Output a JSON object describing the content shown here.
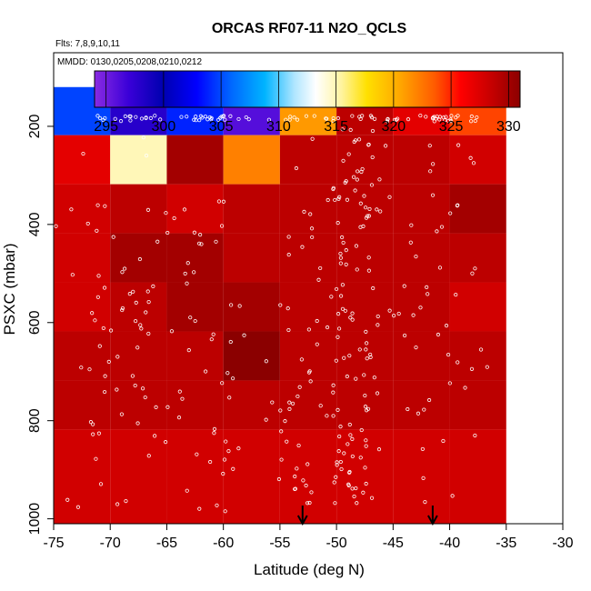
{
  "chart_data": {
    "type": "heatmap",
    "title": "ORCAS RF07-11 N2O_QCLS",
    "flights_note": "Flts: 7,8,9,10,11",
    "dates_note": "MMDD: 0130,0205,0208,0210,0212",
    "xlabel": "Latitude (deg N)",
    "ylabel": "PSXC (mbar)",
    "xlim": [
      -75,
      -30
    ],
    "ylim": [
      1010,
      50
    ],
    "x_ticks": [
      -75,
      -70,
      -65,
      -60,
      -55,
      -50,
      -45,
      -40,
      -35,
      -30
    ],
    "x_tick_labels": [
      "-75",
      "-70",
      "-65",
      "-60",
      "-55",
      "-50",
      "-45",
      "-40",
      "-35",
      "-30"
    ],
    "y_ticks": [
      200,
      400,
      600,
      800,
      1000
    ],
    "y_tick_labels": [
      "200",
      "400",
      "600",
      "800",
      "1000"
    ],
    "colorbar": {
      "min": 294,
      "max": 331,
      "ticks": [
        295,
        300,
        305,
        310,
        315,
        320,
        325,
        330
      ],
      "tick_labels": [
        "295",
        "300",
        "305",
        "310",
        "315",
        "320",
        "325",
        "330"
      ]
    },
    "lat_bins": [
      -75,
      -70,
      -65,
      -60,
      -55,
      -50,
      -45,
      -40,
      -35
    ],
    "pressure_bins": [
      120,
      218,
      318,
      418,
      518,
      618,
      718,
      818,
      1010
    ],
    "cells": [
      [
        305,
        298,
        304,
        296,
        321,
        329,
        327,
        324
      ],
      [
        327,
        315,
        330,
        322,
        329,
        329,
        329,
        328
      ],
      [
        328,
        329,
        328,
        329,
        329,
        329,
        329,
        330
      ],
      [
        328,
        330,
        330,
        329,
        329,
        329,
        329,
        329
      ],
      [
        328,
        329,
        330,
        330,
        329,
        329,
        329,
        328
      ],
      [
        329,
        329,
        329,
        331,
        329,
        329,
        329,
        329
      ],
      [
        329,
        329,
        329,
        329,
        329,
        329,
        329,
        329
      ],
      [
        328,
        328,
        328,
        328,
        328,
        328,
        328,
        328
      ]
    ],
    "markers": [
      -53,
      -41.5
    ],
    "series": []
  }
}
